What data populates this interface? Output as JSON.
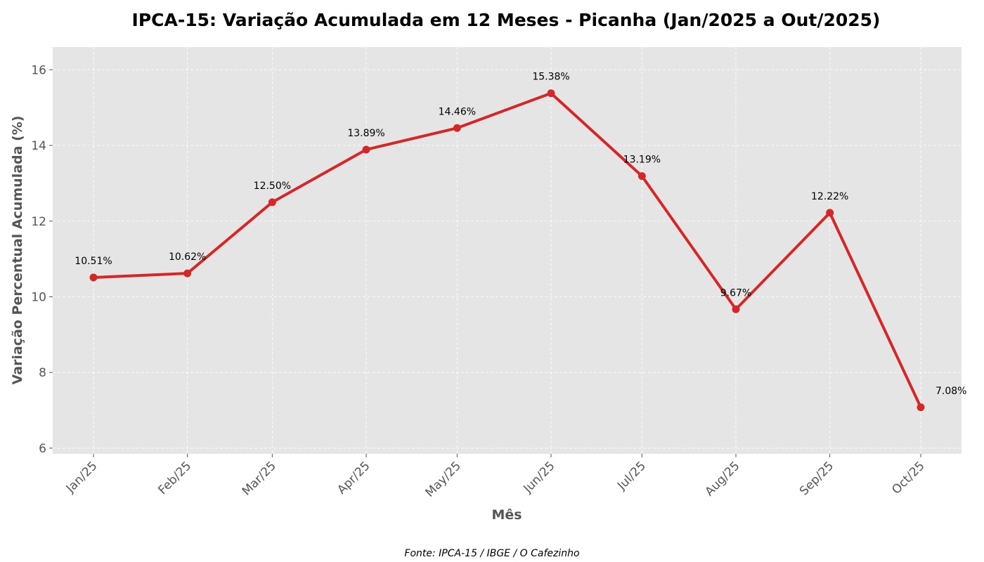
{
  "chart_data": {
    "type": "line",
    "title": "IPCA-15: Variação Acumulada em 12 Meses - Picanha (Jan/2025 a Out/2025)",
    "xlabel": "Mês",
    "ylabel": "Variação Percentual Acumulada (%)",
    "categories": [
      "Jan/25",
      "Feb/25",
      "Mar/25",
      "Apr/25",
      "May/25",
      "Jun/25",
      "Jul/25",
      "Aug/25",
      "Sep/25",
      "Oct/25"
    ],
    "x_positions": [
      "2025-01-15",
      "2025-02-15",
      "2025-03-15",
      "2025-04-15",
      "2025-05-15",
      "2025-06-15",
      "2025-07-15",
      "2025-08-15",
      "2025-09-15",
      "2025-10-15"
    ],
    "series": [
      {
        "values": [
          10.51,
          10.62,
          12.5,
          13.89,
          14.46,
          15.38,
          13.19,
          9.67,
          12.22,
          7.08
        ],
        "labels": [
          "10.51%",
          "10.62%",
          "12.50%",
          "13.89%",
          "14.46%",
          "15.38%",
          "13.19%",
          "9.67%",
          "12.22%",
          "7.08%"
        ],
        "color": "#d62728"
      }
    ],
    "ylim": [
      5.85,
      16.6
    ],
    "yticks": [
      6,
      8,
      10,
      12,
      14,
      16
    ],
    "grid": true,
    "background_color": "#e5e5e5",
    "source": "Fonte: IPCA-15 / IBGE / O Cafezinho"
  }
}
